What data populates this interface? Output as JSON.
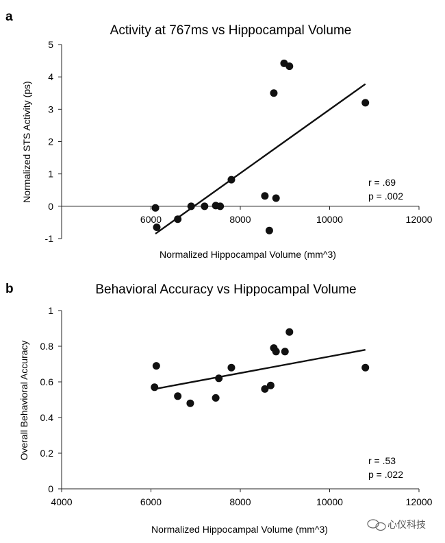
{
  "watermark": "心仪科技",
  "chart_data": [
    {
      "panel": "a",
      "type": "scatter",
      "title": "Activity at 767ms vs Hippocampal Volume",
      "xlabel": "Normalized Hippocampal Volume (mm^3)",
      "ylabel": "Normalized STS Activity (ps)",
      "xlim": [
        4000,
        12000
      ],
      "ylim": [
        -1,
        5
      ],
      "x_ticks": [
        6000,
        8000,
        10000,
        12000
      ],
      "x_tick_labels": [
        "6000",
        "8000",
        "10000",
        "12000"
      ],
      "y_ticks": [
        -1,
        0,
        1,
        2,
        3,
        4,
        5
      ],
      "y_tick_labels": [
        "-1",
        "0",
        "1",
        "2",
        "3",
        "4",
        "5"
      ],
      "x_axis_at": 0,
      "points": [
        {
          "x": 6100,
          "y": -0.05
        },
        {
          "x": 6130,
          "y": -0.65
        },
        {
          "x": 6600,
          "y": -0.4
        },
        {
          "x": 6900,
          "y": 0.0
        },
        {
          "x": 7200,
          "y": 0.0
        },
        {
          "x": 7450,
          "y": 0.02
        },
        {
          "x": 7550,
          "y": 0.0
        },
        {
          "x": 7800,
          "y": 0.82
        },
        {
          "x": 8550,
          "y": 0.32
        },
        {
          "x": 8650,
          "y": -0.75
        },
        {
          "x": 8800,
          "y": 0.25
        },
        {
          "x": 8750,
          "y": 3.5
        },
        {
          "x": 8980,
          "y": 4.42
        },
        {
          "x": 9100,
          "y": 4.33
        },
        {
          "x": 10800,
          "y": 3.2
        }
      ],
      "trendline": {
        "x": [
          6100,
          10800
        ],
        "y": [
          -0.85,
          3.78
        ]
      },
      "stats": {
        "r": "r = .69",
        "p": "p = .002"
      }
    },
    {
      "panel": "b",
      "type": "scatter",
      "title": "Behavioral Accuracy vs Hippocampal Volume",
      "xlabel": "Normalized Hippocampal Volume (mm^3)",
      "ylabel": "Overall Behavioral Accuracy",
      "xlim": [
        4000,
        12000
      ],
      "ylim": [
        0,
        1
      ],
      "x_ticks": [
        4000,
        6000,
        8000,
        10000,
        12000
      ],
      "x_tick_labels": [
        "4000",
        "6000",
        "8000",
        "10000",
        "12000"
      ],
      "y_ticks": [
        0,
        0.2,
        0.4,
        0.6,
        0.8,
        1
      ],
      "y_tick_labels": [
        "0",
        "0.2",
        "0.4",
        "0.6",
        "0.8",
        "1"
      ],
      "x_axis_at": 0,
      "points": [
        {
          "x": 6080,
          "y": 0.57
        },
        {
          "x": 6120,
          "y": 0.69
        },
        {
          "x": 6600,
          "y": 0.52
        },
        {
          "x": 6880,
          "y": 0.48
        },
        {
          "x": 7450,
          "y": 0.51
        },
        {
          "x": 7520,
          "y": 0.62
        },
        {
          "x": 7800,
          "y": 0.68
        },
        {
          "x": 8550,
          "y": 0.56
        },
        {
          "x": 8680,
          "y": 0.58
        },
        {
          "x": 8750,
          "y": 0.79
        },
        {
          "x": 8800,
          "y": 0.77
        },
        {
          "x": 9000,
          "y": 0.77
        },
        {
          "x": 9100,
          "y": 0.88
        },
        {
          "x": 10800,
          "y": 0.68
        }
      ],
      "trendline": {
        "x": [
          6080,
          10800
        ],
        "y": [
          0.56,
          0.78
        ]
      },
      "stats": {
        "r": "r = .53",
        "p": "p = .022"
      }
    }
  ]
}
